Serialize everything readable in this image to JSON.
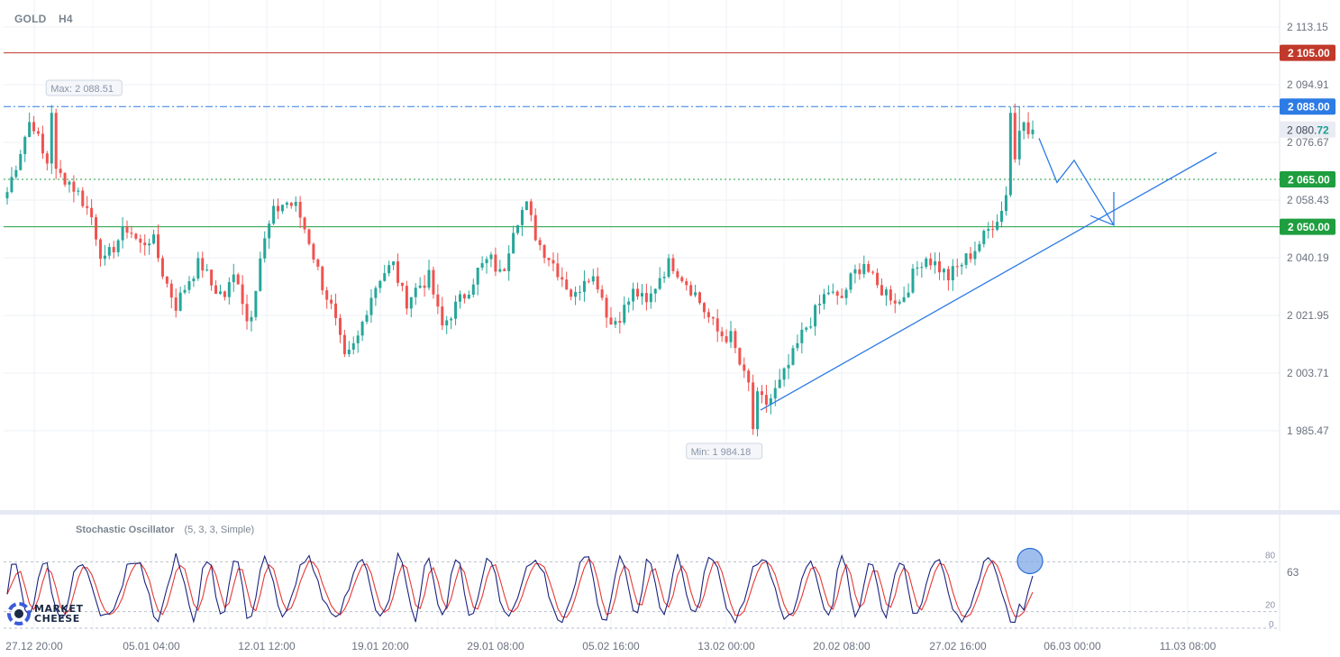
{
  "header": {
    "symbol": "GOLD",
    "timeframe": "H4"
  },
  "oscillator": {
    "name": "Stochastic Oscillator",
    "params": "(5, 3, 3, Simple)",
    "current_value": "63"
  },
  "logo": {
    "line1": "MARKET",
    "line2": "CHEESE"
  },
  "chart_data": {
    "type": "candlestick",
    "price_axis_ticks": [
      "2 113.15",
      "2 094.91",
      "2 076.67",
      "2 058.43",
      "2 040.19",
      "2 021.95",
      "2 003.71",
      "1 985.47"
    ],
    "price_axis_tick_values": [
      2113.15,
      2094.91,
      2076.67,
      2058.43,
      2040.19,
      2021.95,
      2003.71,
      1985.47
    ],
    "time_axis_labels": [
      "27.12 20:00",
      "05.01 04:00",
      "12.01 12:00",
      "19.01 20:00",
      "29.01 08:00",
      "05.02 16:00",
      "13.02 00:00",
      "20.02 08:00",
      "27.02 16:00",
      "06.03 00:00",
      "11.03 08:00"
    ],
    "levels": [
      {
        "label": "2 105.00",
        "value": 2105.0,
        "color": "#c0392b",
        "style": "solid"
      },
      {
        "label": "2 088.00",
        "value": 2088.0,
        "color": "#2d7be5",
        "style": "dash-dot"
      },
      {
        "label": "2 065.00",
        "value": 2065.0,
        "color": "#1e9e3e",
        "style": "dotted"
      },
      {
        "label": "2 050.00",
        "value": 2050.0,
        "color": "#1e9e3e",
        "style": "solid"
      }
    ],
    "current_price": {
      "main": "2 080.",
      "decimals": "72",
      "value": 2080.72
    },
    "max_label": "Max: 2 088.51",
    "max_value": 2088.51,
    "min_label": "Min: 1 984.18",
    "min_value": 1984.18,
    "close_path": [
      2061,
      2073,
      2085,
      2072,
      2067,
      2065,
      2060,
      2053,
      2038,
      2045,
      2050,
      2044,
      2047,
      2034,
      2025,
      2033,
      2039,
      2031,
      2028,
      2036,
      2018,
      2041,
      2054,
      2058,
      2056,
      2046,
      2033,
      2023,
      2007,
      2014,
      2027,
      2035,
      2038,
      2026,
      2031,
      2034,
      2018,
      2024,
      2029,
      2036,
      2040,
      2034,
      2051,
      2057,
      2045,
      2040,
      2034,
      2027,
      2036,
      2032,
      2019,
      2023,
      2030,
      2025,
      2034,
      2039,
      2034,
      2029,
      2022,
      2016,
      2015,
      2003,
      1996,
      1994,
      2000,
      2008,
      2017,
      2023,
      2030,
      2026,
      2034,
      2039,
      2031,
      2029,
      2026,
      2034,
      2041,
      2038,
      2034,
      2038,
      2042,
      2047,
      2053,
      2057,
      2084,
      2080
    ],
    "bullet_projection": "down from 2 080.72 toward 2 065.00 and 2 050.00",
    "stochastic": {
      "upper_band": 80,
      "lower_band": 20,
      "zero_label": "0",
      "upper_label": "80",
      "lower_label": "20",
      "k_color": "#1a237e",
      "d_color": "#e53935"
    }
  }
}
